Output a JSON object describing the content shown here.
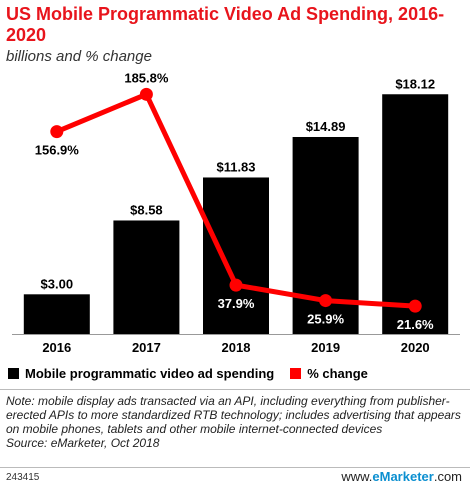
{
  "header": {
    "title": "US Mobile Programmatic Video Ad Spending, 2016-2020",
    "subtitle": "billions and % change"
  },
  "chart_data": {
    "type": "bar",
    "categories": [
      "2016",
      "2017",
      "2018",
      "2019",
      "2020"
    ],
    "series": [
      {
        "name": "Mobile programmatic video ad spending",
        "type": "bar",
        "values": [
          3.0,
          8.58,
          11.83,
          14.89,
          18.12
        ],
        "labels": [
          "$3.00",
          "$8.58",
          "$11.83",
          "$14.89",
          "$18.12"
        ],
        "color": "#000000"
      },
      {
        "name": "% change",
        "type": "line",
        "values": [
          156.9,
          185.8,
          37.9,
          25.9,
          21.6
        ],
        "labels": [
          "156.9%",
          "185.8%",
          "37.9%",
          "25.9%",
          "21.6%"
        ],
        "color": "#ff0000"
      }
    ],
    "ylim": [
      0,
      19.5
    ],
    "y2lim": [
      0,
      200
    ],
    "legend_placement": "bottom"
  },
  "legend": {
    "bar_label": "Mobile programmatic video ad spending",
    "line_label": "% change",
    "bar_color": "#000000",
    "line_color": "#ff0000"
  },
  "footer": {
    "note": "Note: mobile display ads transacted via an API, including everything from publisher-erected APIs to more standardized RTB technology; includes advertising that appears on mobile phones, tablets and other mobile internet-connected devices",
    "source": "Source: eMarketer, Oct 2018",
    "chart_id": "243415",
    "brand_prefix": "www.",
    "brand_name": "eMarketer",
    "brand_suffix": ".com"
  }
}
